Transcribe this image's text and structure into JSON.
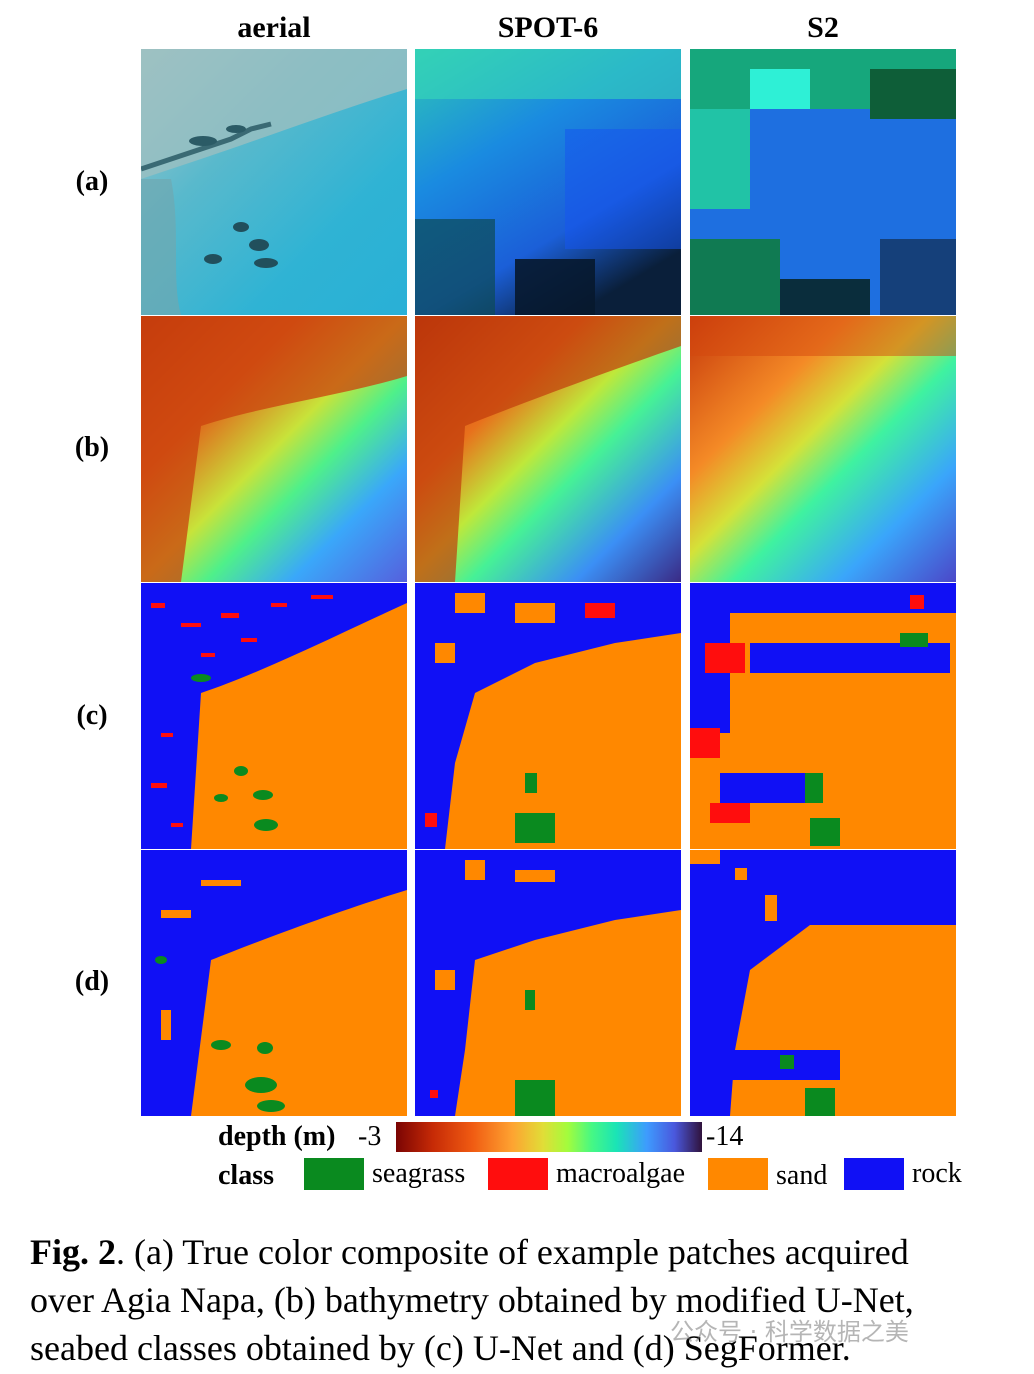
{
  "columns": [
    "aerial",
    "SPOT-6",
    "S2"
  ],
  "rows": [
    "(a)",
    "(b)",
    "(c)",
    "(d)"
  ],
  "legend": {
    "depth_label": "depth (m)",
    "depth_min": "-3",
    "depth_max": "-14",
    "class_label": "class",
    "classes": [
      {
        "name": "seagrass",
        "color": "#0a8a1f"
      },
      {
        "name": "macroalgae",
        "color": "#ff0d0d"
      },
      {
        "name": "sand",
        "color": "#ff8800"
      },
      {
        "name": "rock",
        "color": "#1010f5"
      }
    ]
  },
  "caption": {
    "fig_label": "Fig. 2",
    "lines": [
      ". (a) True color composite of example patches acquired",
      "over Agia Napa, (b) bathymetry obtained by modified U-Net,",
      "seabed classes obtained by (c) U-Net and (d) SegFormer."
    ]
  },
  "watermark": "公众号 · 科学数据之美"
}
